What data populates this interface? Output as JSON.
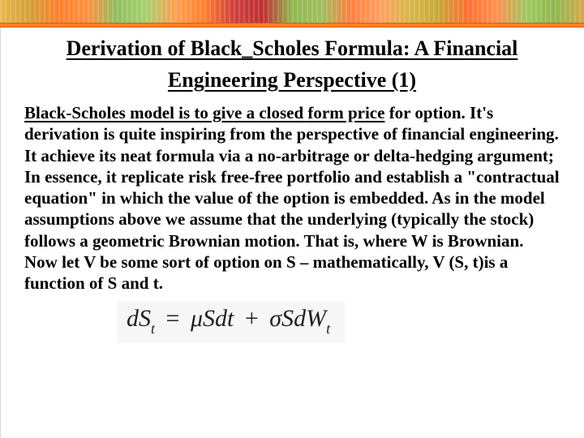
{
  "banner": {
    "accent_color": "#ff7f2a"
  },
  "title": "Derivation of Black_Scholes Formula: A Financial Engineering Perspective (1)",
  "body": {
    "lead": "Black-Scholes model is to give  a closed form price",
    "rest": " for  option. It's derivation is quite inspiring from the perspective of financial engineering.  It achieve its neat  formula via a no-arbitrage or delta-hedging argument; In essence, it  replicate risk free-free portfolio and establish a \"contractual  equation\" in which the value of the option is embedded.  As in the model assumptions above we assume that the underlying (typically the stock) follows a geometric Brownian motion. That is, where W is Brownian. Now let V be some sort of option on S – mathematically, V (S, t)is a function of S and t."
  },
  "equation": {
    "lhs_var": "dS",
    "lhs_sub": "t",
    "rhs1_coef": "μS",
    "rhs1_diff": "dt",
    "rhs2_coef": "σS",
    "rhs2_diff": "dW",
    "rhs2_sub": "t",
    "bg_color": "#f6f6f6",
    "text_color": "#222222"
  }
}
